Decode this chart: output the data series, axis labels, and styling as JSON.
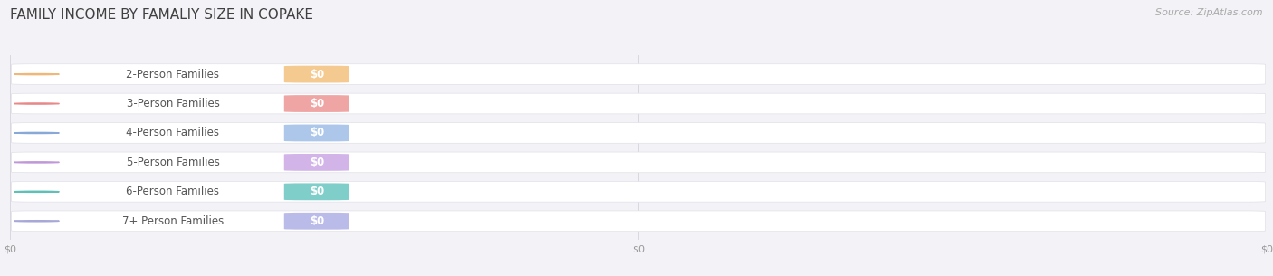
{
  "title": "FAMILY INCOME BY FAMALIY SIZE IN COPAKE",
  "source_text": "Source: ZipAtlas.com",
  "categories": [
    "2-Person Families",
    "3-Person Families",
    "4-Person Families",
    "5-Person Families",
    "6-Person Families",
    "7+ Person Families"
  ],
  "values": [
    0,
    0,
    0,
    0,
    0,
    0
  ],
  "circle_colors": [
    "#f0b878",
    "#e88888",
    "#88a8d8",
    "#c098d8",
    "#60c0b8",
    "#a8a8d8"
  ],
  "value_badge_colors": [
    "#f5c88a",
    "#f0a0a0",
    "#a8c4e8",
    "#d0b0e8",
    "#78ccc8",
    "#b8b8e8"
  ],
  "background_color": "#f2f2f7",
  "bar_bg_color": "#ffffff",
  "bar_edge_color": "#e0e0e8",
  "value_label": "$0",
  "xtick_positions": [
    0.0,
    0.5,
    1.0
  ],
  "xtick_labels": [
    "$0",
    "$0",
    "$0"
  ],
  "title_fontsize": 11,
  "label_fontsize": 8.5,
  "source_fontsize": 8,
  "title_color": "#404040",
  "label_color": "#555555",
  "source_color": "#aaaaaa"
}
